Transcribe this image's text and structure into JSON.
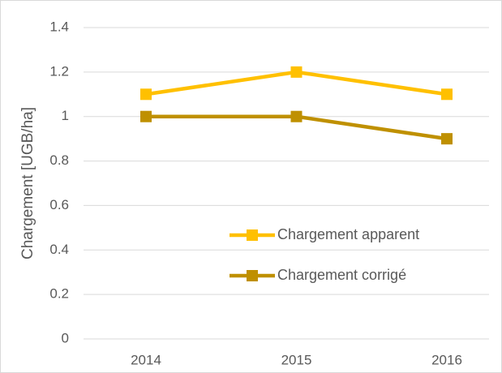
{
  "chart_data": {
    "type": "line",
    "y_label": "Chargement [UGB/ha]",
    "categories": [
      "2014",
      "2015",
      "2016"
    ],
    "series": [
      {
        "name": "Chargement apparent",
        "color": "#FFC000",
        "values": [
          1.1,
          1.2,
          1.1
        ]
      },
      {
        "name": "Chargement corrigé",
        "color": "#BF9000",
        "values": [
          1.0,
          1.0,
          0.9
        ]
      }
    ],
    "ylim": [
      0,
      1.4
    ],
    "yticks": [
      0,
      0.2,
      0.4,
      0.6,
      0.8,
      1,
      1.2,
      1.4
    ],
    "grid": true
  }
}
